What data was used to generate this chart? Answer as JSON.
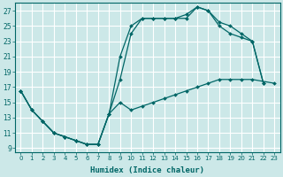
{
  "xlabel": "Humidex (Indice chaleur)",
  "bg_color": "#cce8e8",
  "line_color": "#006666",
  "grid_color": "#ffffff",
  "xlim": [
    -0.5,
    23.5
  ],
  "ylim": [
    8.5,
    28.0
  ],
  "xticks": [
    0,
    1,
    2,
    3,
    4,
    5,
    6,
    7,
    8,
    9,
    10,
    11,
    12,
    13,
    14,
    15,
    16,
    17,
    18,
    19,
    20,
    21,
    22,
    23
  ],
  "yticks": [
    9,
    11,
    13,
    15,
    17,
    19,
    21,
    23,
    25,
    27
  ],
  "series": [
    {
      "x": [
        0,
        1,
        2,
        3,
        4,
        5,
        6,
        7,
        8,
        9,
        10,
        11,
        12,
        13,
        14,
        15,
        16,
        17,
        18,
        19,
        20,
        21,
        22
      ],
      "y": [
        16.5,
        14,
        12.5,
        11,
        10.5,
        10,
        9.5,
        9.5,
        13.5,
        18,
        24,
        26,
        26,
        26,
        26,
        26,
        27.5,
        27,
        25,
        24,
        23.5,
        23,
        17.5
      ]
    },
    {
      "x": [
        0,
        1,
        2,
        3,
        4,
        5,
        6,
        7,
        8,
        9,
        10,
        11,
        12,
        13,
        14,
        15,
        16,
        17,
        18,
        19,
        20,
        21,
        22,
        23
      ],
      "y": [
        16.5,
        14,
        12.5,
        11,
        10.5,
        10,
        9.5,
        9.5,
        13.5,
        21,
        25,
        26,
        26,
        26,
        26,
        26.5,
        27.5,
        27,
        25.5,
        25,
        24,
        23,
        17.5,
        null
      ]
    },
    {
      "x": [
        0,
        1,
        2,
        3,
        4,
        5,
        6,
        7,
        8,
        9,
        10,
        11,
        12,
        13,
        14,
        15,
        16,
        17,
        18,
        19,
        20,
        21,
        22,
        23
      ],
      "y": [
        16.5,
        14,
        12.5,
        11,
        10.5,
        10,
        9.5,
        9.5,
        13.5,
        15,
        14,
        14.5,
        15,
        15.5,
        16,
        16.5,
        17,
        17.5,
        18,
        18,
        18,
        18,
        null,
        17.5
      ]
    }
  ]
}
